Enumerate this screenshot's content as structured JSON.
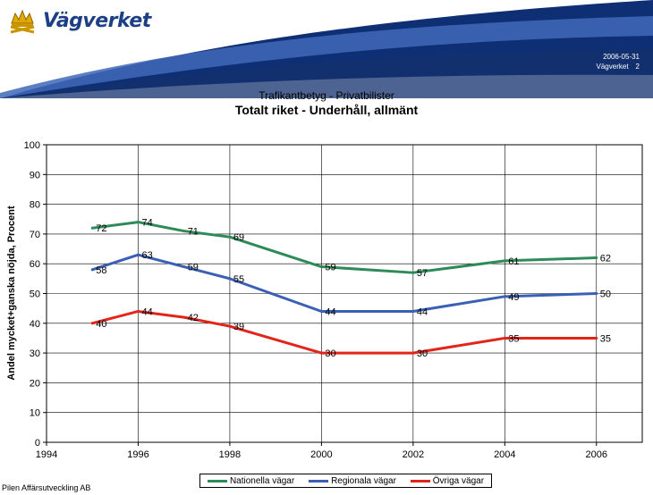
{
  "header": {
    "brand": "Vägverket",
    "date": "2006-05-31",
    "org": "Vägverket",
    "page": "2"
  },
  "footer": {
    "text": "Pilen Affärsutveckling AB"
  },
  "colors": {
    "nationella": "#2e8b57",
    "regionala": "#3a5fb5",
    "ovriga": "#e1251b",
    "brand": "#1c3f86"
  },
  "chart_data": {
    "type": "line",
    "subtitle": "Trafikantbetyg - Privatbilister",
    "title": "Totalt riket - Underhåll, allmänt",
    "xlabel": "",
    "ylabel": "Andel mycket+ganska nöjda, Procent",
    "xlim": [
      1994,
      2007
    ],
    "ylim": [
      0,
      100
    ],
    "xticks": [
      1994,
      1996,
      1998,
      2000,
      2002,
      2004,
      2006
    ],
    "yticks": [
      0,
      10,
      20,
      30,
      40,
      50,
      60,
      70,
      80,
      90,
      100
    ],
    "grid": true,
    "legend_position": "bottom",
    "x": [
      1995,
      1996,
      1997,
      1998,
      2000,
      2002,
      2004,
      2006
    ],
    "series": [
      {
        "name": "Nationella vägar",
        "color": "#2e8b57",
        "values": [
          72,
          74,
          71,
          69,
          59,
          57,
          61,
          62
        ]
      },
      {
        "name": "Regionala vägar",
        "color": "#3a5fb5",
        "values": [
          58,
          63,
          59,
          55,
          44,
          44,
          49,
          50
        ]
      },
      {
        "name": "Övriga vägar",
        "color": "#e1251b",
        "values": [
          40,
          44,
          42,
          39,
          30,
          30,
          35,
          35
        ]
      }
    ]
  }
}
